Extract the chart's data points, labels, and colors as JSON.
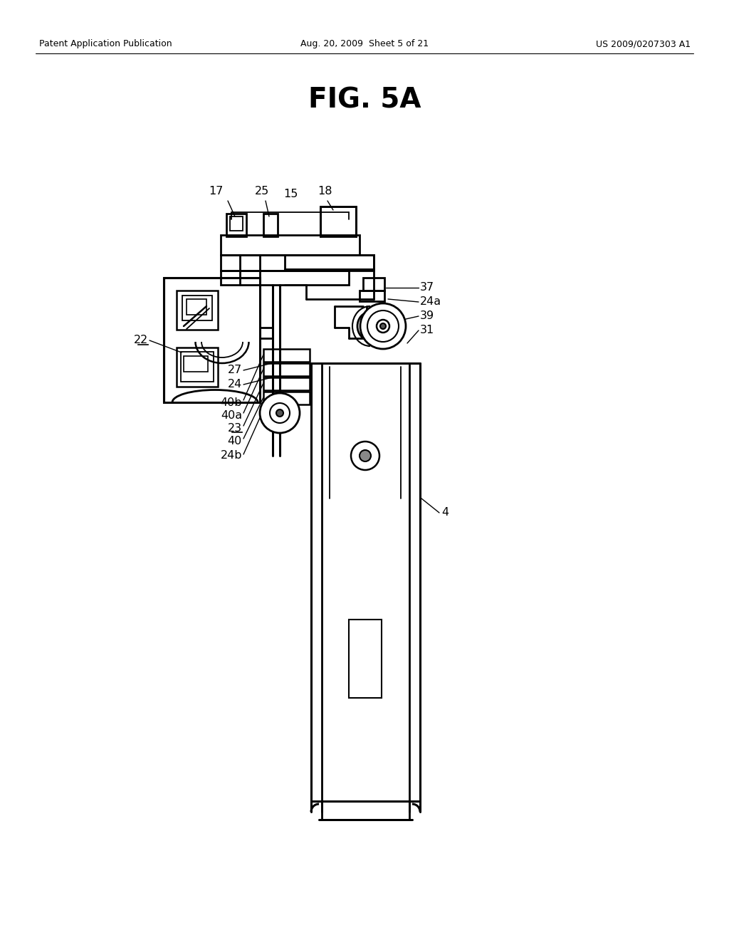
{
  "bg_color": "#ffffff",
  "header_left": "Patent Application Publication",
  "header_center": "Aug. 20, 2009  Sheet 5 of 21",
  "header_right": "US 2009/0207303 A1",
  "fig_title": "FIG. 5A"
}
